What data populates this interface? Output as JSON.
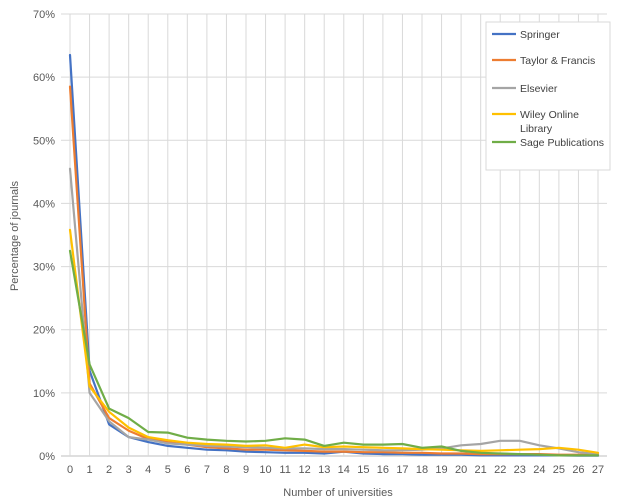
{
  "chart_data": {
    "type": "line",
    "x": [
      0,
      1,
      2,
      3,
      4,
      5,
      6,
      7,
      8,
      9,
      10,
      11,
      12,
      13,
      14,
      15,
      16,
      17,
      18,
      19,
      20,
      21,
      22,
      23,
      24,
      25,
      26,
      27
    ],
    "xlabel": "Number of universities",
    "ylabel": "Percentage of journals",
    "ylim": [
      0,
      70
    ],
    "yticks": [
      "0%",
      "10%",
      "20%",
      "30%",
      "40%",
      "50%",
      "60%",
      "70%"
    ],
    "grid": true,
    "legend_position": "top-right",
    "series": [
      {
        "name": "Springer",
        "color": "#4472C4",
        "values": [
          63.5,
          13.5,
          5.0,
          3.0,
          2.2,
          1.6,
          1.3,
          1.0,
          0.9,
          0.7,
          0.6,
          0.5,
          0.5,
          0.4,
          0.7,
          0.4,
          0.3,
          0.3,
          0.2,
          0.2,
          0.2,
          0.1,
          0.1,
          0.1,
          0.1,
          0.1,
          0.05,
          0.05
        ]
      },
      {
        "name": "Taylor & Francis",
        "color": "#ED7D31",
        "values": [
          58.5,
          11.5,
          6.0,
          4.0,
          2.7,
          2.2,
          1.8,
          1.4,
          1.2,
          1.0,
          1.0,
          0.9,
          0.8,
          0.7,
          0.7,
          0.6,
          0.6,
          0.5,
          0.5,
          0.4,
          0.4,
          0.3,
          0.3,
          0.3,
          0.3,
          0.2,
          0.2,
          0.2
        ]
      },
      {
        "name": "Elsevier",
        "color": "#A5A5A5",
        "values": [
          45.5,
          10.0,
          5.5,
          3.0,
          2.6,
          2.0,
          1.8,
          1.6,
          1.5,
          1.4,
          1.3,
          1.2,
          1.2,
          1.1,
          1.1,
          1.0,
          0.9,
          0.9,
          1.0,
          1.2,
          1.7,
          1.9,
          2.4,
          2.4,
          1.7,
          1.2,
          0.6,
          0.3
        ]
      },
      {
        "name": "Wiley Online Library",
        "color": "#FFC000",
        "values": [
          35.8,
          11.0,
          7.0,
          4.5,
          3.0,
          2.5,
          2.1,
          1.9,
          1.8,
          1.6,
          1.7,
          1.3,
          1.8,
          1.4,
          1.5,
          1.4,
          1.3,
          1.2,
          1.1,
          1.0,
          0.9,
          0.8,
          0.9,
          1.0,
          1.1,
          1.3,
          1.0,
          0.5
        ]
      },
      {
        "name": "Sage Publications",
        "color": "#70AD47",
        "values": [
          32.5,
          14.5,
          7.5,
          6.0,
          3.8,
          3.7,
          2.9,
          2.6,
          2.4,
          2.3,
          2.4,
          2.8,
          2.6,
          1.6,
          2.1,
          1.8,
          1.8,
          1.9,
          1.3,
          1.5,
          0.8,
          0.5,
          0.4,
          0.3,
          0.2,
          0.1,
          0.1,
          0.1
        ]
      }
    ]
  }
}
